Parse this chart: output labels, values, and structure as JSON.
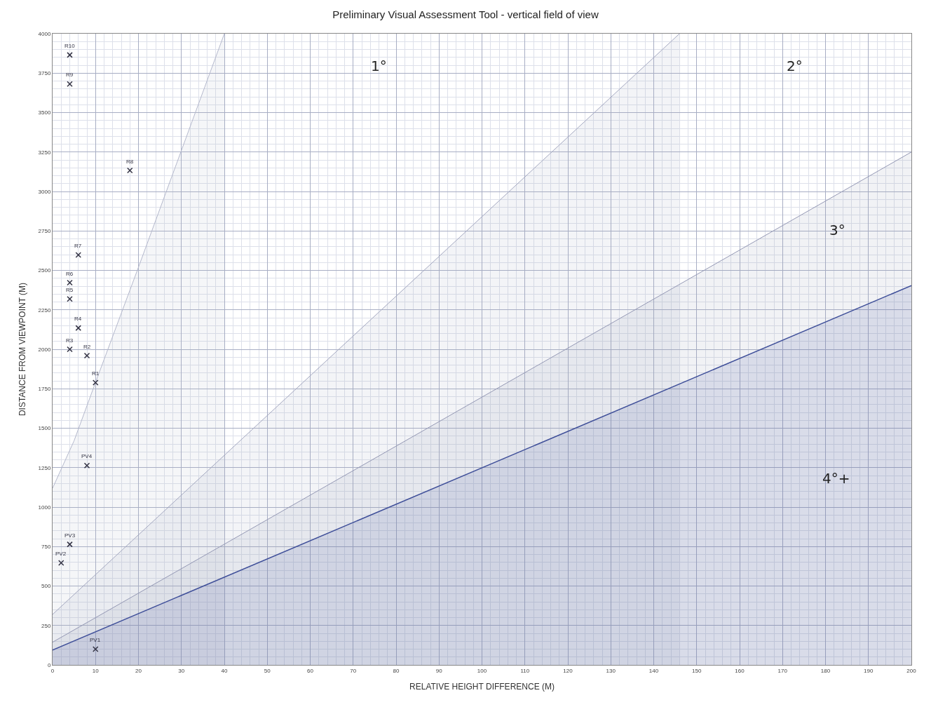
{
  "chart_data": {
    "type": "scatter",
    "title": "Preliminary Visual Assessment Tool - vertical field of view",
    "xlabel": "RELATIVE HEIGHT DIFFERENCE (M)",
    "ylabel": "DISTANCE FROM VIEWPOINT (M)",
    "xlim": [
      0,
      200
    ],
    "xticks": [
      0,
      10,
      20,
      30,
      40,
      50,
      60,
      70,
      80,
      90,
      100,
      110,
      120,
      130,
      140,
      150,
      160,
      170,
      180,
      190,
      200
    ],
    "ylim": [
      0,
      4000
    ],
    "yticks": [
      0,
      250,
      500,
      750,
      1000,
      1250,
      1500,
      1750,
      2000,
      2250,
      2500,
      2750,
      3000,
      3250,
      3500,
      3750,
      4000
    ],
    "grid": true,
    "series": [
      {
        "type": "area",
        "color": "#b4b8cc",
        "x": [
          0,
          5,
          10,
          20,
          30,
          40
        ],
        "values": [
          1120,
          1420,
          1790,
          2520,
          3260,
          4000
        ]
      },
      {
        "type": "area",
        "color": "#a4a8c0",
        "x": [
          0,
          146
        ],
        "values": [
          320,
          4000
        ]
      },
      {
        "type": "area",
        "color": "#9498b4",
        "x": [
          0,
          200
        ],
        "values": [
          144,
          3250
        ]
      },
      {
        "type": "area",
        "color": "#3f4f99",
        "x": [
          0,
          200
        ],
        "values": [
          94,
          2404
        ]
      },
      {
        "marker": "cross",
        "color": "#333344",
        "x": [
          10,
          2,
          4,
          8,
          10,
          8,
          4,
          6,
          4,
          4,
          6,
          18,
          4,
          4
        ],
        "values": [
          100,
          647,
          764,
          1263,
          1789,
          1960,
          2000,
          2135,
          2319,
          2422,
          2598,
          3133,
          3681,
          3865
        ]
      }
    ],
    "annotations": [
      {
        "text": "PV1",
        "x": 10,
        "y": 100
      },
      {
        "text": "PV2",
        "x": 2,
        "y": 647
      },
      {
        "text": "PV3",
        "x": 4,
        "y": 764
      },
      {
        "text": "PV4",
        "x": 8,
        "y": 1263
      },
      {
        "text": "R1",
        "x": 10,
        "y": 1789
      },
      {
        "text": "R2",
        "x": 8,
        "y": 1960
      },
      {
        "text": "R3",
        "x": 4,
        "y": 2000
      },
      {
        "text": "R4",
        "x": 6,
        "y": 2135
      },
      {
        "text": "R5",
        "x": 4,
        "y": 2319
      },
      {
        "text": "R6",
        "x": 4,
        "y": 2422
      },
      {
        "text": "R7",
        "x": 6,
        "y": 2598
      },
      {
        "text": "R8",
        "x": 18,
        "y": 3133
      },
      {
        "text": "R9",
        "x": 4,
        "y": 3681
      },
      {
        "text": "R10",
        "x": 4,
        "y": 3865
      },
      "1°",
      "2°",
      "3°",
      "4°+"
    ]
  }
}
